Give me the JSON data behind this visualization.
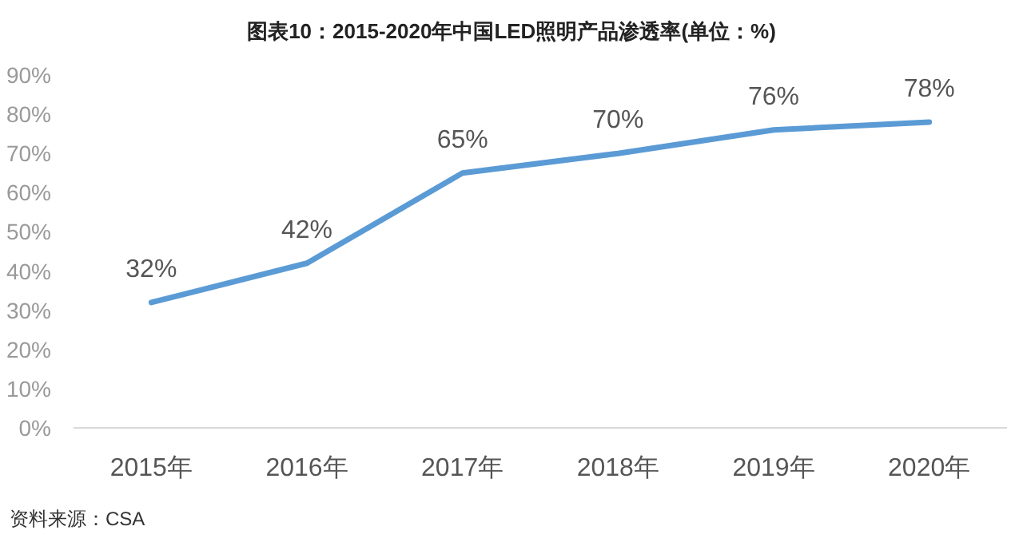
{
  "chart_data": {
    "type": "line",
    "title": "图表10：2015-2020年中国LED照明产品渗透率(单位：%)",
    "categories": [
      "2015年",
      "2016年",
      "2017年",
      "2018年",
      "2019年",
      "2020年"
    ],
    "series": [
      {
        "color": "#5b9bd5",
        "values": [
          32,
          42,
          65,
          70,
          76,
          78
        ],
        "value_labels": [
          "32%",
          "42%",
          "65%",
          "70%",
          "76%",
          "78%"
        ]
      }
    ],
    "ylim": [
      0,
      90
    ],
    "yticks": [
      {
        "value": 0,
        "label": "0%"
      },
      {
        "value": 10,
        "label": "10%"
      },
      {
        "value": 20,
        "label": "20%"
      },
      {
        "value": 30,
        "label": "30%"
      },
      {
        "value": 40,
        "label": "40%"
      },
      {
        "value": 50,
        "label": "50%"
      },
      {
        "value": 60,
        "label": "60%"
      },
      {
        "value": 70,
        "label": "70%"
      },
      {
        "value": 80,
        "label": "80%"
      },
      {
        "value": 90,
        "label": "90%"
      }
    ],
    "grid": false,
    "annotations": [
      "资料来源：CSA"
    ]
  }
}
